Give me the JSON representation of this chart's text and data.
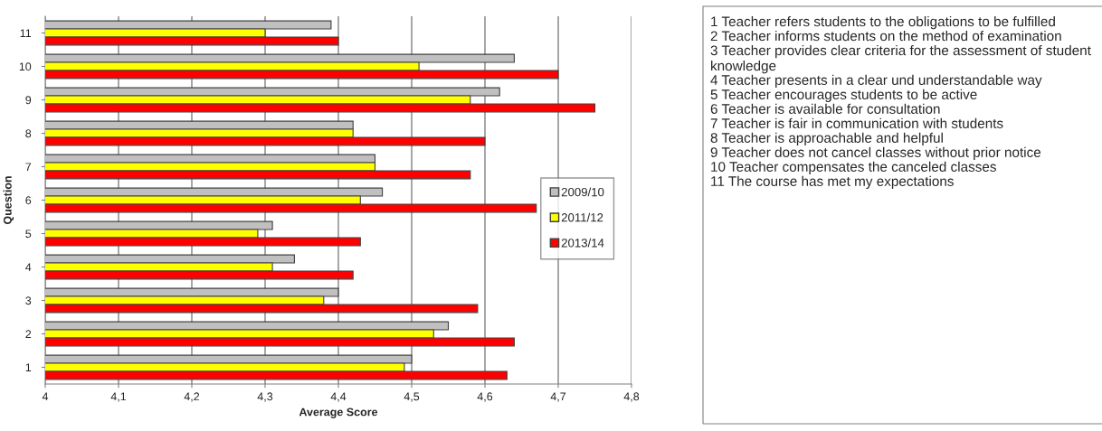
{
  "chart_data": {
    "type": "bar",
    "orientation": "horizontal",
    "xlabel": "Average Score",
    "ylabel": "Question",
    "categories": [
      "11",
      "10",
      "9",
      "8",
      "7",
      "6",
      "5",
      "4",
      "3",
      "2",
      "1"
    ],
    "series": [
      {
        "name": "2009/10",
        "color": "#c0c0c0",
        "values": [
          4.39,
          4.64,
          4.62,
          4.42,
          4.45,
          4.46,
          4.31,
          4.34,
          4.4,
          4.55,
          4.5
        ]
      },
      {
        "name": "2011/12",
        "color": "#ffff00",
        "values": [
          4.3,
          4.51,
          4.58,
          4.42,
          4.45,
          4.43,
          4.29,
          4.31,
          4.38,
          4.53,
          4.49
        ]
      },
      {
        "name": "2013/14",
        "color": "#ff0000",
        "values": [
          4.4,
          4.7,
          4.75,
          4.6,
          4.58,
          4.67,
          4.43,
          4.42,
          4.59,
          4.64,
          4.63
        ]
      }
    ],
    "xlim": [
      4,
      4.8
    ],
    "xticks": [
      4,
      {
        "value": 4.1,
        "label": "4,1"
      },
      {
        "value": 4.2,
        "label": "4,2"
      },
      {
        "value": 4.3,
        "label": "4,3"
      },
      {
        "value": 4.4,
        "label": "4,4"
      },
      {
        "value": 4.5,
        "label": "4,5"
      },
      {
        "value": 4.6,
        "label": "4,6"
      },
      {
        "value": 4.7,
        "label": "4,7"
      },
      {
        "value": 4.8,
        "label": "4,8"
      }
    ],
    "grid": "x",
    "legend": "right",
    "annotations": [
      "1 Teacher refers students to the obligations to be fulfilled",
      "2 Teacher informs students on the method of examination",
      "3 Teacher provides clear criteria for the assessment of student knowledge",
      "4 Teacher presents in a clear und understandable way",
      "5 Teacher encourages students to be active",
      "6 Teacher is available for consultation",
      "7 Teacher is fair in communication with students",
      "8 Teacher is approachable and helpful",
      "9 Teacher does not cancel classes without prior notice",
      "10 Teacher compensates the canceled classes",
      "11 The course has met my expectations"
    ]
  }
}
